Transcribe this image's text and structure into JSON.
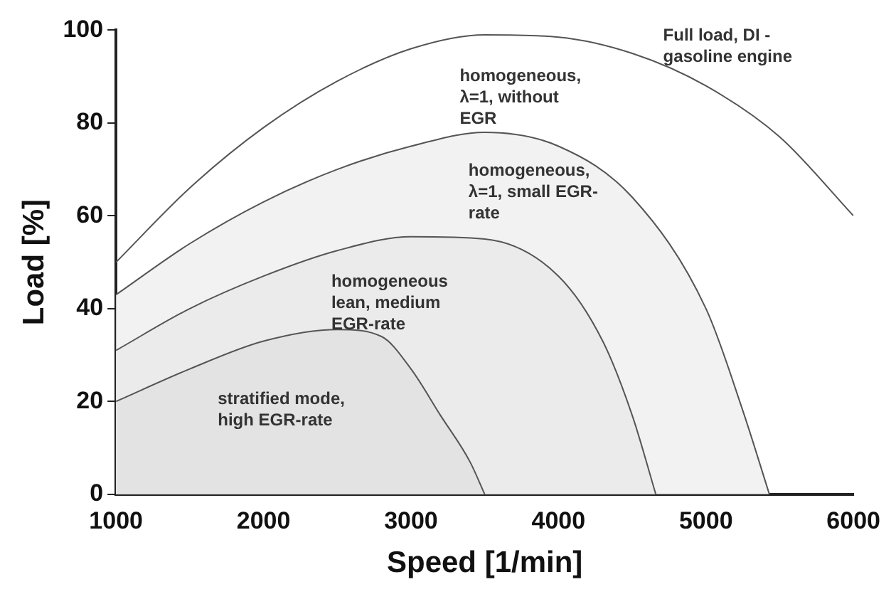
{
  "chart_data": {
    "type": "area",
    "xlabel": "Speed [1/min]",
    "ylabel": "Load [%]",
    "xlim": [
      1000,
      6000
    ],
    "xticks": [
      1000,
      2000,
      3000,
      4000,
      5000,
      6000
    ],
    "ylim": [
      0,
      100
    ],
    "yticks": [
      0,
      20,
      40,
      60,
      80,
      100
    ],
    "grid": false,
    "legend": false,
    "marker": "none",
    "series": [
      {
        "type": "line",
        "color": "#555555",
        "x": [
          1000,
          1500,
          2000,
          2500,
          3000,
          3500,
          4000,
          4500,
          5000,
          5500,
          6000
        ],
        "values": [
          50,
          66,
          79,
          89,
          96,
          99,
          98.5,
          95,
          88,
          77,
          60
        ]
      },
      {
        "color": "#f2f2f2",
        "x": [
          1000,
          1500,
          2000,
          2500,
          3000,
          3500,
          4000,
          4500,
          5000,
          5250,
          5430
        ],
        "values": [
          43,
          54,
          63,
          70,
          75,
          78,
          75,
          64,
          40,
          18,
          0
        ]
      },
      {
        "color": "#ebebeb",
        "x": [
          1000,
          1500,
          2000,
          2500,
          3000,
          3500,
          4000,
          4300,
          4500,
          4660
        ],
        "values": [
          31,
          40,
          47,
          52.5,
          55.5,
          55,
          47,
          33,
          17,
          0
        ]
      },
      {
        "color": "#e3e3e3",
        "x": [
          1000,
          1500,
          2000,
          2500,
          2800,
          3000,
          3200,
          3400,
          3500
        ],
        "values": [
          20,
          27,
          33,
          35.5,
          34,
          27,
          17,
          7,
          0
        ]
      }
    ],
    "annotations": [
      "Full load, DI -\ngasoline engine",
      "homogeneous,\nλ=1, without\nEGR",
      "homogeneous,\nλ=1, small EGR-\nrate",
      "homogeneous\nlean, medium\nEGR-rate",
      "stratified mode,\nhigh EGR-rate"
    ]
  }
}
